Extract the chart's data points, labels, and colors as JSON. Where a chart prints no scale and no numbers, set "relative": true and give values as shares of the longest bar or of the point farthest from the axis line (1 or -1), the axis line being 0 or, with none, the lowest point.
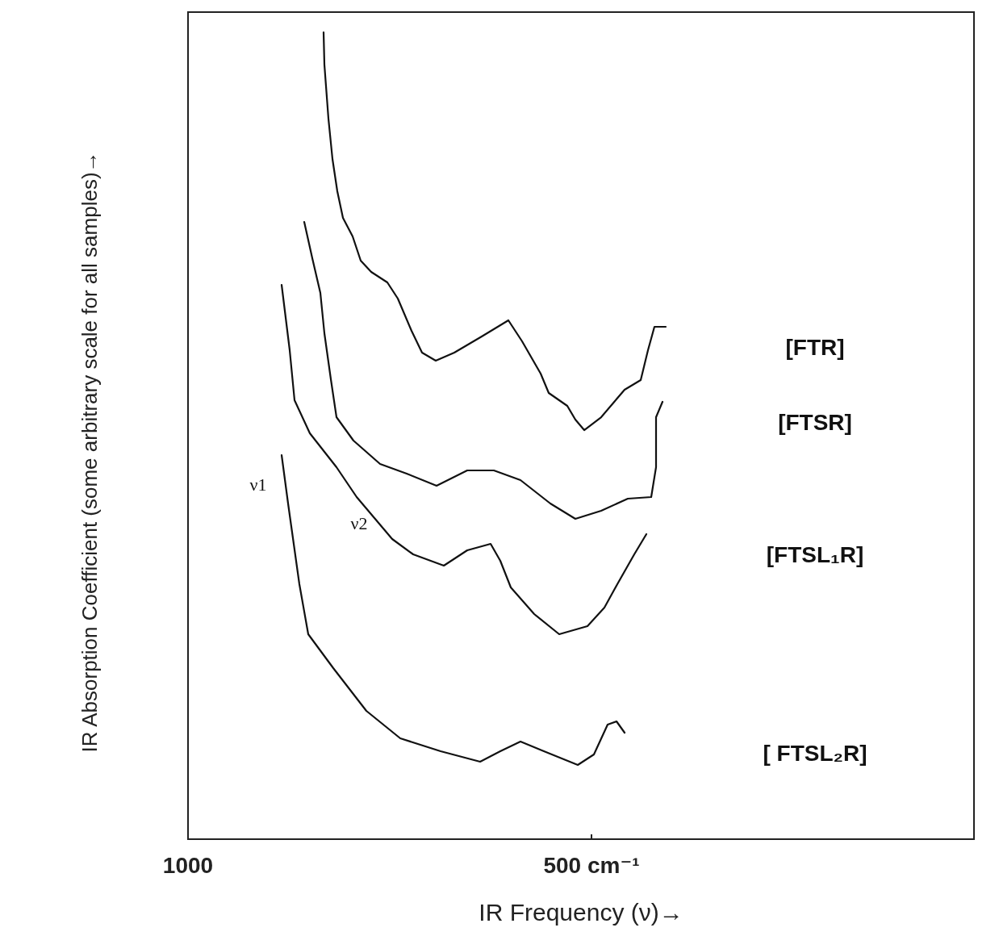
{
  "chart_data": {
    "type": "line",
    "relative": true,
    "xlabel": "IR Frequency (ν)→",
    "ylabel": "IR Absorption Coefficient (some arbitrary scale for all samples)→",
    "xlim": [
      1000,
      26
    ],
    "xticks": [
      {
        "value": 1000,
        "label": "1000"
      },
      {
        "value": 500,
        "label": "500 cm⁻¹"
      }
    ],
    "grid": false,
    "legend": false,
    "marker": "none",
    "line_style": "solid",
    "annotations": [
      "ν1",
      "ν2"
    ],
    "series": [
      {
        "name": "[FTR]",
        "color": "#111111",
        "x": [
          832,
          831,
          826,
          821,
          815,
          808,
          796,
          786,
          773,
          753,
          740,
          723,
          710,
          693,
          670,
          636,
          603,
          586,
          563,
          553,
          530,
          520,
          509,
          488,
          459,
          439,
          430,
          422,
          408
        ],
        "values": [
          1,
          0.96,
          0.893,
          0.843,
          0.803,
          0.77,
          0.747,
          0.717,
          0.703,
          0.69,
          0.67,
          0.63,
          0.603,
          0.593,
          0.603,
          0.623,
          0.643,
          0.617,
          0.577,
          0.553,
          0.537,
          0.52,
          0.507,
          0.523,
          0.557,
          0.569,
          0.606,
          0.635,
          0.635
        ]
      },
      {
        "name": "[FTSR]",
        "color": "#111111",
        "x": [
          856,
          846,
          836,
          831,
          823,
          816,
          795,
          762,
          729,
          692,
          654,
          621,
          588,
          551,
          520,
          488,
          455,
          426,
          420,
          420,
          412
        ],
        "values": [
          0.765,
          0.72,
          0.677,
          0.627,
          0.57,
          0.523,
          0.494,
          0.465,
          0.453,
          0.438,
          0.457,
          0.457,
          0.445,
          0.416,
          0.397,
          0.407,
          0.422,
          0.424,
          0.461,
          0.523,
          0.542
        ]
      },
      {
        "name": "[FTSL₁R]",
        "color": "#111111",
        "x": [
          884,
          874,
          868,
          849,
          816,
          791,
          747,
          721,
          683,
          654,
          625,
          613,
          600,
          571,
          540,
          505,
          484,
          468,
          447,
          432
        ],
        "values": [
          0.687,
          0.606,
          0.544,
          0.503,
          0.461,
          0.424,
          0.372,
          0.353,
          0.339,
          0.358,
          0.366,
          0.345,
          0.312,
          0.279,
          0.254,
          0.264,
          0.287,
          0.316,
          0.353,
          0.378
        ]
      },
      {
        "name": "[ FTSL₂R]",
        "color": "#111111",
        "x": [
          884,
          876,
          862,
          851,
          820,
          779,
          737,
          687,
          638,
          613,
          588,
          559,
          517,
          497,
          480,
          469,
          459
        ],
        "values": [
          0.476,
          0.416,
          0.316,
          0.254,
          0.212,
          0.159,
          0.125,
          0.109,
          0.096,
          0.109,
          0.121,
          0.109,
          0.092,
          0.105,
          0.142,
          0.146,
          0.132
        ]
      }
    ]
  }
}
